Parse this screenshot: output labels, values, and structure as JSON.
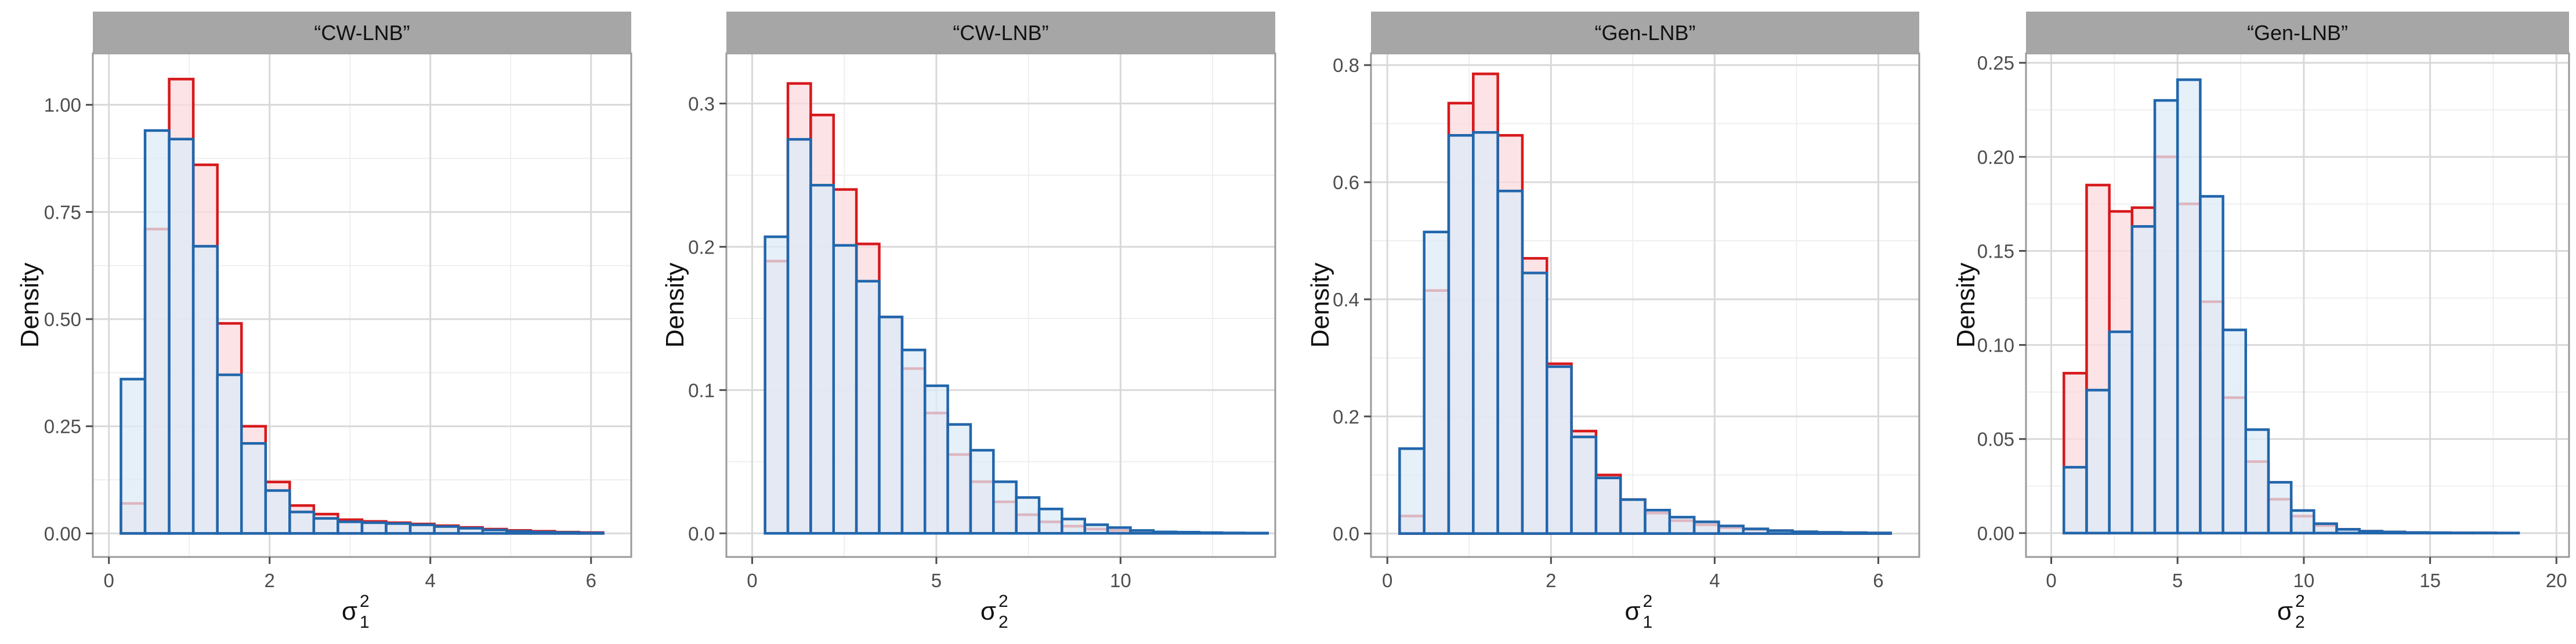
{
  "figure": {
    "y_axis_title": "Density",
    "series_colors": {
      "red": {
        "stroke": "#d7191c",
        "fill": "#fadadd"
      },
      "blue": {
        "stroke": "#2166ac",
        "fill": "#deebf7"
      }
    }
  },
  "chart_data": [
    {
      "type": "histogram",
      "strip_label": "“CW-LNB”",
      "xlabel": {
        "base": "σ",
        "sup": "2",
        "sub": "1"
      },
      "ylabel": "Density",
      "xlim": [
        -0.2,
        6.5
      ],
      "ylim": [
        -0.055,
        1.12
      ],
      "x_ticks": [
        0,
        2,
        4,
        6
      ],
      "x_tick_labels": [
        "0",
        "2",
        "4",
        "6"
      ],
      "y_ticks": [
        0,
        0.25,
        0.5,
        0.75,
        1.0
      ],
      "y_tick_labels": [
        "0.00",
        "0.25",
        "0.50",
        "0.75",
        "1.00"
      ],
      "bin_start": 0.15,
      "bin_width": 0.3,
      "series": [
        {
          "name": "red",
          "values": [
            0.07,
            0.71,
            1.06,
            0.86,
            0.49,
            0.25,
            0.12,
            0.065,
            0.045,
            0.032,
            0.028,
            0.025,
            0.022,
            0.018,
            0.014,
            0.01,
            0.007,
            0.005,
            0.003,
            0.002
          ]
        },
        {
          "name": "blue",
          "values": [
            0.36,
            0.94,
            0.92,
            0.67,
            0.37,
            0.21,
            0.1,
            0.05,
            0.035,
            0.027,
            0.025,
            0.023,
            0.02,
            0.016,
            0.012,
            0.008,
            0.005,
            0.003,
            0.002,
            0.001
          ]
        }
      ]
    },
    {
      "type": "histogram",
      "strip_label": "“CW-LNB”",
      "xlabel": {
        "base": "σ",
        "sup": "2",
        "sub": "2"
      },
      "ylabel": "Density",
      "xlim": [
        -0.7,
        14.2
      ],
      "ylim": [
        -0.0165,
        0.335
      ],
      "x_ticks": [
        0,
        5,
        10
      ],
      "x_tick_labels": [
        "0",
        "5",
        "10"
      ],
      "y_ticks": [
        0,
        0.1,
        0.2,
        0.3
      ],
      "y_tick_labels": [
        "0.0",
        "0.1",
        "0.2",
        "0.3"
      ],
      "bin_start": 0.35,
      "bin_width": 0.62,
      "series": [
        {
          "name": "red",
          "values": [
            0.19,
            0.314,
            0.292,
            0.24,
            0.202,
            0.151,
            0.115,
            0.084,
            0.055,
            0.036,
            0.022,
            0.013,
            0.008,
            0.005,
            0.003,
            0.002,
            0.001,
            0.0008,
            0.0005,
            0.0003,
            0.0002,
            0.0001
          ]
        },
        {
          "name": "blue",
          "values": [
            0.207,
            0.275,
            0.243,
            0.201,
            0.176,
            0.151,
            0.128,
            0.103,
            0.076,
            0.058,
            0.036,
            0.025,
            0.017,
            0.01,
            0.006,
            0.004,
            0.002,
            0.001,
            0.0008,
            0.0005,
            0.0003,
            0.0002
          ]
        }
      ]
    },
    {
      "type": "histogram",
      "strip_label": "“Gen-LNB”",
      "xlabel": {
        "base": "σ",
        "sup": "2",
        "sub": "1"
      },
      "ylabel": "Density",
      "xlim": [
        -0.2,
        6.5
      ],
      "ylim": [
        -0.04,
        0.82
      ],
      "x_ticks": [
        0,
        2,
        4,
        6
      ],
      "x_tick_labels": [
        "0",
        "2",
        "4",
        "6"
      ],
      "y_ticks": [
        0,
        0.2,
        0.4,
        0.6,
        0.8
      ],
      "y_tick_labels": [
        "0.0",
        "0.2",
        "0.4",
        "0.6",
        "0.8"
      ],
      "bin_start": 0.15,
      "bin_width": 0.3,
      "series": [
        {
          "name": "red",
          "values": [
            0.03,
            0.415,
            0.735,
            0.785,
            0.68,
            0.47,
            0.29,
            0.175,
            0.1,
            0.058,
            0.035,
            0.022,
            0.015,
            0.01,
            0.007,
            0.005,
            0.003,
            0.002,
            0.0015,
            0.001
          ]
        },
        {
          "name": "blue",
          "values": [
            0.145,
            0.515,
            0.68,
            0.685,
            0.585,
            0.445,
            0.285,
            0.165,
            0.095,
            0.058,
            0.04,
            0.028,
            0.02,
            0.013,
            0.008,
            0.005,
            0.003,
            0.002,
            0.0015,
            0.001
          ]
        }
      ]
    },
    {
      "type": "histogram",
      "strip_label": "“Gen-LNB”",
      "xlabel": {
        "base": "σ",
        "sup": "2",
        "sub": "2"
      },
      "ylabel": "Density",
      "xlim": [
        -1.0,
        20.5
      ],
      "ylim": [
        -0.0127,
        0.255
      ],
      "x_ticks": [
        0,
        5,
        10,
        15,
        20
      ],
      "x_tick_labels": [
        "0",
        "5",
        "10",
        "15",
        "20"
      ],
      "y_ticks": [
        0,
        0.05,
        0.1,
        0.15,
        0.2,
        0.25
      ],
      "y_tick_labels": [
        "0.00",
        "0.05",
        "0.10",
        "0.15",
        "0.20",
        "0.25"
      ],
      "bin_start": 0.5,
      "bin_width": 0.9,
      "series": [
        {
          "name": "red",
          "values": [
            0.085,
            0.185,
            0.171,
            0.173,
            0.2,
            0.175,
            0.123,
            0.072,
            0.038,
            0.018,
            0.009,
            0.004,
            0.002,
            0.001,
            0.0006,
            0.0003,
            0.0002,
            0.0001,
            0.0001,
            5e-05
          ]
        },
        {
          "name": "blue",
          "values": [
            0.035,
            0.076,
            0.107,
            0.163,
            0.23,
            0.241,
            0.179,
            0.108,
            0.055,
            0.027,
            0.012,
            0.005,
            0.002,
            0.001,
            0.0006,
            0.0003,
            0.0002,
            0.0001,
            0.0001,
            5e-05
          ]
        }
      ]
    }
  ]
}
